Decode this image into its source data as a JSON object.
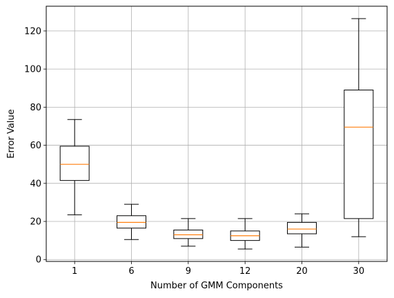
{
  "chart_data": {
    "type": "box",
    "title": "",
    "xlabel": "Number of GMM Components",
    "ylabel": "Error Value",
    "categories": [
      "1",
      "6",
      "9",
      "12",
      "20",
      "30"
    ],
    "yticks": [
      0,
      20,
      40,
      60,
      80,
      100,
      120
    ],
    "ylim": [
      -1,
      133
    ],
    "grid": true,
    "boxes": [
      {
        "category": "1",
        "whisker_low": 23.5,
        "q1": 41.5,
        "median": 50.0,
        "q3": 59.5,
        "whisker_high": 73.5
      },
      {
        "category": "6",
        "whisker_low": 10.5,
        "q1": 16.5,
        "median": 19.5,
        "q3": 23.0,
        "whisker_high": 29.0
      },
      {
        "category": "9",
        "whisker_low": 7.0,
        "q1": 11.0,
        "median": 13.0,
        "q3": 15.5,
        "whisker_high": 21.5
      },
      {
        "category": "12",
        "whisker_low": 5.5,
        "q1": 10.0,
        "median": 12.5,
        "q3": 15.0,
        "whisker_high": 21.5
      },
      {
        "category": "20",
        "whisker_low": 6.5,
        "q1": 13.5,
        "median": 16.0,
        "q3": 19.5,
        "whisker_high": 24.0
      },
      {
        "category": "30",
        "whisker_low": 12.0,
        "q1": 21.5,
        "median": 69.5,
        "q3": 89.0,
        "whisker_high": 126.5
      }
    ],
    "colors": {
      "box": "#000000",
      "median": "#ff7f0e",
      "grid": "#b0b0b0"
    }
  }
}
